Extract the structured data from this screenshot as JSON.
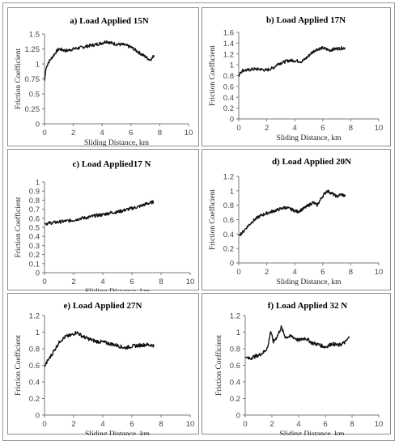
{
  "chart_data": [
    {
      "type": "line",
      "title": "a) Load Applied 15N",
      "xlabel": "Sliding Distance, km",
      "ylabel": "Friction Coefficient",
      "xlim": [
        0,
        10
      ],
      "ylim": [
        0,
        1.5
      ],
      "xticks": [
        "0",
        "2",
        "4",
        "6",
        "8",
        "10"
      ],
      "yticks": [
        "0",
        "0.25",
        "0.5",
        "0.75",
        "1",
        "1.25",
        "1.5"
      ],
      "grid": false,
      "legend": "none",
      "series": [
        {
          "x": [
            0,
            0.1,
            0.25,
            0.5,
            0.8,
            1.0,
            1.5,
            2.0,
            2.5,
            3.0,
            3.5,
            4.0,
            4.3,
            4.6,
            5.0,
            5.5,
            6.0,
            6.5,
            7.0,
            7.3,
            7.5,
            7.6
          ],
          "y": [
            0.72,
            0.92,
            1.02,
            1.1,
            1.2,
            1.25,
            1.22,
            1.25,
            1.27,
            1.3,
            1.32,
            1.35,
            1.38,
            1.35,
            1.33,
            1.32,
            1.28,
            1.2,
            1.12,
            1.07,
            1.1,
            1.15
          ]
        }
      ]
    },
    {
      "type": "line",
      "title": "b) Load Applied 17N",
      "xlabel": "Sliding Distance, km",
      "ylabel": "Friction Coefficient",
      "xlim": [
        0,
        10
      ],
      "ylim": [
        0,
        1.6
      ],
      "xticks": [
        "0",
        "2",
        "4",
        "6",
        "8",
        "10"
      ],
      "yticks": [
        "0",
        "0.2",
        "0.4",
        "0.6",
        "0.8",
        "1",
        "1.2",
        "1.4",
        "1.6"
      ],
      "grid": false,
      "legend": "none",
      "series": [
        {
          "x": [
            0,
            0.1,
            0.3,
            0.6,
            1.0,
            1.5,
            2.0,
            2.5,
            2.8,
            3.2,
            3.6,
            4.0,
            4.5,
            4.8,
            5.2,
            5.5,
            6.0,
            6.5,
            7.0,
            7.5,
            7.6
          ],
          "y": [
            0.78,
            0.86,
            0.9,
            0.9,
            0.92,
            0.92,
            0.9,
            0.95,
            1.02,
            1.05,
            1.08,
            1.08,
            1.06,
            1.12,
            1.22,
            1.28,
            1.31,
            1.27,
            1.3,
            1.31,
            1.32
          ]
        }
      ]
    },
    {
      "type": "line",
      "title": "c) Load Applied17 N",
      "xlabel": "Sliding Distance, km",
      "ylabel": "Friction Coefficient",
      "xlim": [
        0,
        10
      ],
      "ylim": [
        0,
        1
      ],
      "xticks": [
        "0",
        "2",
        "4",
        "6",
        "8",
        "10"
      ],
      "yticks": [
        "0",
        "0.1",
        "0.2",
        "0.3",
        "0.4",
        "0.5",
        "0.6",
        "0.7",
        "0.8",
        "0.9",
        "1"
      ],
      "grid": false,
      "legend": "none",
      "series": [
        {
          "x": [
            0,
            0.5,
            1.0,
            1.5,
            2.0,
            2.5,
            3.0,
            3.5,
            4.0,
            4.5,
            5.0,
            5.5,
            6.0,
            6.5,
            7.0,
            7.5
          ],
          "y": [
            0.54,
            0.55,
            0.56,
            0.57,
            0.58,
            0.6,
            0.61,
            0.63,
            0.64,
            0.66,
            0.67,
            0.69,
            0.71,
            0.73,
            0.76,
            0.78
          ]
        }
      ]
    },
    {
      "type": "line",
      "title": "d) Load Applied 20N",
      "xlabel": "Sliding Distance, km",
      "ylabel": "Friction Coefficient",
      "xlim": [
        0,
        10
      ],
      "ylim": [
        0,
        1.2
      ],
      "xticks": [
        "0",
        "2",
        "4",
        "6",
        "8",
        "10"
      ],
      "yticks": [
        "0",
        "0.2",
        "0.4",
        "0.6",
        "0.8",
        "1",
        "1.2"
      ],
      "grid": false,
      "legend": "none",
      "series": [
        {
          "x": [
            0,
            0.3,
            0.6,
            1.0,
            1.5,
            2.0,
            2.5,
            3.0,
            3.3,
            3.8,
            4.2,
            4.6,
            5.0,
            5.3,
            5.6,
            6.0,
            6.3,
            6.6,
            7.0,
            7.3,
            7.6
          ],
          "y": [
            0.38,
            0.43,
            0.5,
            0.58,
            0.65,
            0.69,
            0.72,
            0.75,
            0.77,
            0.74,
            0.71,
            0.75,
            0.8,
            0.84,
            0.8,
            0.93,
            1.0,
            0.97,
            0.92,
            0.95,
            0.93
          ]
        }
      ]
    },
    {
      "type": "line",
      "title": "e) Load Applied 27N",
      "xlabel": "Sliding Distance, km",
      "ylabel": "Friction Coefficient",
      "xlim": [
        0,
        10
      ],
      "ylim": [
        0,
        1.2
      ],
      "xticks": [
        "0",
        "2",
        "4",
        "6",
        "8",
        "10"
      ],
      "yticks": [
        "0",
        "0.2",
        "0.4",
        "0.6",
        "0.8",
        "1",
        "1.2"
      ],
      "grid": false,
      "legend": "none",
      "series": [
        {
          "x": [
            0,
            0.2,
            0.5,
            0.8,
            1.1,
            1.5,
            1.8,
            2.2,
            2.6,
            3.0,
            3.5,
            4.0,
            4.5,
            5.0,
            5.5,
            6.0,
            6.5,
            7.0,
            7.5
          ],
          "y": [
            0.58,
            0.65,
            0.73,
            0.82,
            0.9,
            0.95,
            0.96,
            1.0,
            0.95,
            0.92,
            0.89,
            0.88,
            0.86,
            0.84,
            0.81,
            0.83,
            0.84,
            0.85,
            0.84
          ]
        }
      ]
    },
    {
      "type": "line",
      "title": "f) Load Applied 32 N",
      "xlabel": "Sliding Distance, km",
      "ylabel": "Friction Coefficient",
      "xlim": [
        0,
        10
      ],
      "ylim": [
        0,
        1.2
      ],
      "xticks": [
        "0",
        "2",
        "4",
        "6",
        "8",
        "10"
      ],
      "yticks": [
        "0",
        "0.2",
        "0.4",
        "0.6",
        "0.8",
        "1",
        "1.2"
      ],
      "grid": false,
      "legend": "none",
      "series": [
        {
          "x": [
            0,
            0.3,
            0.6,
            1.0,
            1.4,
            1.7,
            1.9,
            2.1,
            2.4,
            2.7,
            3.0,
            3.5,
            4.0,
            4.5,
            5.0,
            5.5,
            6.0,
            6.5,
            7.0,
            7.5,
            7.8
          ],
          "y": [
            0.7,
            0.68,
            0.7,
            0.72,
            0.76,
            0.82,
            1.02,
            0.88,
            0.95,
            1.06,
            0.94,
            0.95,
            0.9,
            0.93,
            0.87,
            0.85,
            0.82,
            0.86,
            0.84,
            0.88,
            0.94
          ]
        }
      ]
    }
  ]
}
